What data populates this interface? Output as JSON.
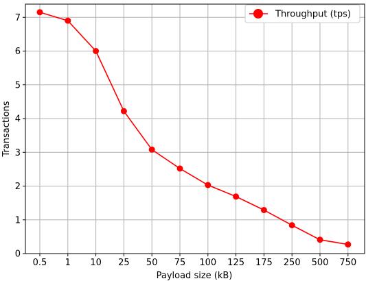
{
  "chart_data": {
    "type": "line",
    "categories": [
      "0.5",
      "1",
      "10",
      "25",
      "50",
      "75",
      "100",
      "125",
      "175",
      "250",
      "500",
      "750"
    ],
    "series": [
      {
        "name": "Throughput (tps)",
        "values": [
          7.15,
          6.9,
          6.0,
          4.22,
          3.08,
          2.52,
          2.03,
          1.69,
          1.29,
          0.84,
          0.41,
          0.27
        ],
        "color": "#ff0000"
      }
    ],
    "xlabel": "Payload size (kB)",
    "ylabel": "Transactions",
    "ylim": [
      0,
      7.25
    ],
    "yticks": [
      "0",
      "1",
      "2",
      "3",
      "4",
      "5",
      "6",
      "7"
    ],
    "grid": true,
    "legend": "top-right"
  }
}
